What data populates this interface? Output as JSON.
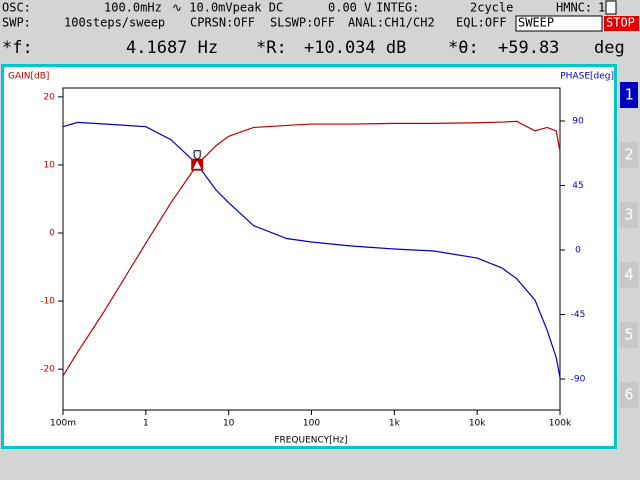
{
  "header": {
    "line1": [
      "OSC:",
      "100.0mHz",
      "∿ 10.0mVpeak DC",
      "0.00 V",
      "INTEG:",
      "2cycle",
      "HMNC:",
      "1"
    ],
    "line2": [
      "SWP:",
      "100steps/sweep",
      "CPRSN:OFF",
      "SLSWP:OFF",
      "ANAL:CH1/CH2",
      "EQL:OFF"
    ],
    "sweep": "SWEEP",
    "stop": "STOP"
  },
  "readout": {
    "f_label": "*f:",
    "f": "4.1687 Hz",
    "r_label": "*R:",
    "r": "+10.034 dB",
    "theta_label": "*θ:",
    "theta": "+59.83",
    "theta_unit": "deg"
  },
  "tabs": [
    "1",
    "2",
    "3",
    "4",
    "5",
    "6"
  ],
  "chart_data": {
    "type": "line",
    "ylabel": "GAIN[dB]",
    "y2label": "PHASE[deg]",
    "xlabel": "FREQUENCY[Hz]",
    "log_x": true,
    "xlim": [
      0.1,
      100000
    ],
    "xticks": [
      {
        "value": 0.1,
        "label": "100m"
      },
      1,
      10,
      100,
      {
        "value": 1000,
        "label": "1k"
      },
      {
        "value": 10000,
        "label": "10k"
      },
      {
        "value": 100000,
        "label": "100k"
      }
    ],
    "ylim": [
      -26,
      21.3
    ],
    "yticks": [
      -20,
      -10,
      0,
      10,
      20
    ],
    "y2lim": [
      -111.6,
      113
    ],
    "y2ticks": [
      -90,
      -45,
      0,
      45,
      90
    ],
    "x": [
      0.1,
      0.15,
      0.3,
      1,
      2,
      4.1687,
      7,
      10,
      20,
      50,
      100,
      300,
      1000,
      3000,
      10000,
      20000,
      30000,
      50000,
      70000,
      90000,
      100000
    ],
    "series": [
      {
        "color": "#c00000",
        "values": [
          -21,
          -17.5,
          -11.9,
          -1.5,
          4.4,
          10.034,
          12.8,
          14.2,
          15.5,
          15.8,
          16,
          16,
          16.1,
          16.1,
          16.2,
          16.3,
          16.4,
          15,
          15.5,
          15,
          12
        ]
      },
      {
        "color": "#0000c0",
        "axis": "y2",
        "values": [
          86,
          89,
          88,
          86,
          77,
          59.83,
          42,
          33,
          17,
          8,
          5.6,
          2.8,
          0.7,
          -0.7,
          -5.6,
          -12.6,
          -20,
          -35,
          -56,
          -75,
          -89
        ]
      }
    ],
    "cursor": {
      "x": 4.1687,
      "y": 10.034
    }
  }
}
